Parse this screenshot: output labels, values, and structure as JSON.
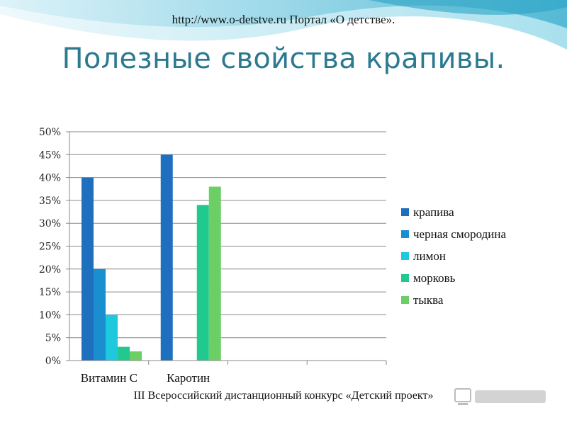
{
  "header": {
    "url_line": "http://www.o-detstve.ru Портал «О детстве».",
    "title": "Полезные свойства крапивы."
  },
  "footer": {
    "text": "III Всероссийский дистанционный конкурс «Детский проект»"
  },
  "chart_data": {
    "type": "bar",
    "title": "",
    "xlabel": "",
    "ylabel": "",
    "ylim": [
      0,
      50
    ],
    "y_ticks": [
      "0%",
      "5%",
      "10%",
      "15%",
      "20%",
      "25%",
      "30%",
      "35%",
      "40%",
      "45%",
      "50%"
    ],
    "grid": true,
    "legend_position": "right",
    "categories": [
      "Витамин С",
      "Каротин",
      "",
      ""
    ],
    "series": [
      {
        "name": "крапива",
        "color": "#1f6fbf",
        "values": [
          40,
          45,
          null,
          null
        ]
      },
      {
        "name": "черная смородина",
        "color": "#1a8fd0",
        "values": [
          20,
          null,
          null,
          null
        ]
      },
      {
        "name": "лимон",
        "color": "#1fc9dd",
        "values": [
          10,
          null,
          null,
          null
        ]
      },
      {
        "name": "морковь",
        "color": "#22c98e",
        "values": [
          3,
          34,
          null,
          null
        ]
      },
      {
        "name": "тыква",
        "color": "#6ccf66",
        "values": [
          2,
          38,
          null,
          null
        ]
      }
    ]
  }
}
